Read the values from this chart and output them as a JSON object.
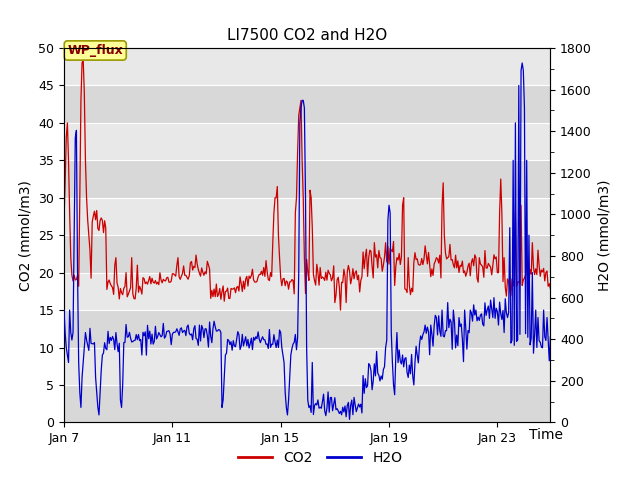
{
  "title": "LI7500 CO2 and H2O",
  "xlabel": "Time",
  "ylabel_left": "CO2 (mmol/m3)",
  "ylabel_right": "H2O (mmol/m3)",
  "ylim_left": [
    0,
    50
  ],
  "ylim_right": [
    0,
    1800
  ],
  "xtick_labels": [
    "Jan 7",
    "Jan 11",
    "Jan 15",
    "Jan 19",
    "Jan 23"
  ],
  "xtick_positions": [
    0,
    96,
    192,
    288,
    384
  ],
  "total_points": 432,
  "fig_bg_color": "#ffffff",
  "plot_bg_light": "#e8e8e8",
  "plot_bg_dark": "#d8d8d8",
  "co2_color": "#cc0000",
  "h2o_color": "#0000cc",
  "annotation_text": "WP_flux",
  "annotation_bg": "#ffff99",
  "annotation_border": "#999900",
  "legend_co2": "CO2",
  "legend_h2o": "H2O",
  "title_fontsize": 11,
  "axis_label_fontsize": 10,
  "tick_fontsize": 9,
  "legend_fontsize": 10
}
